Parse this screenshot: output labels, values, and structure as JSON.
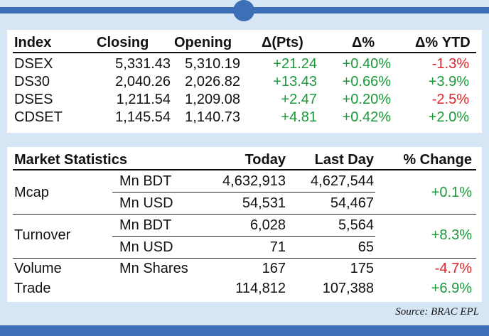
{
  "index_table": {
    "headers": [
      "Index",
      "Closing",
      "Opening",
      "Δ(Pts)",
      "Δ%",
      "Δ% YTD"
    ],
    "rows": [
      [
        "DSEX",
        "5,331.43",
        "5,310.19",
        "+21.24",
        "+0.40%",
        "-1.3%"
      ],
      [
        "DS30",
        "2,040.26",
        "2,026.82",
        "+13.43",
        "+0.66%",
        "+3.9%"
      ],
      [
        "DSES",
        "1,211.54",
        "1,209.08",
        "+2.47",
        "+0.20%",
        "-2.5%"
      ],
      [
        "CDSET",
        "1,145.54",
        "1,140.73",
        "+4.81",
        "+0.42%",
        "+2.0%"
      ]
    ]
  },
  "market_table": {
    "headers": [
      "Market Statistics",
      "Today",
      "Last Day",
      "% Change"
    ],
    "mcap": {
      "label": "Mcap",
      "units": [
        "Mn BDT",
        "Mn USD"
      ],
      "today": [
        "4,632,913",
        "54,531"
      ],
      "last_day": [
        "4,627,544",
        "54,467"
      ],
      "change": "+0.1%"
    },
    "turnover": {
      "label": "Turnover",
      "units": [
        "Mn BDT",
        "Mn USD"
      ],
      "today": [
        "6,028",
        "71"
      ],
      "last_day": [
        "5,564",
        "65"
      ],
      "change": "+8.3%"
    },
    "volume": {
      "label": "Volume",
      "unit": "Mn Shares",
      "today": "167",
      "last_day": "175",
      "change": "-4.7%"
    },
    "trade": {
      "label": "Trade",
      "today": "114,812",
      "last_day": "107,388",
      "change": "+6.9%"
    }
  },
  "source": "Source: BRAC EPL",
  "colors": {
    "accent": "#3d6fb6",
    "background": "#d6e6f5",
    "positive": "#1a9a3a",
    "negative": "#e0262b"
  }
}
